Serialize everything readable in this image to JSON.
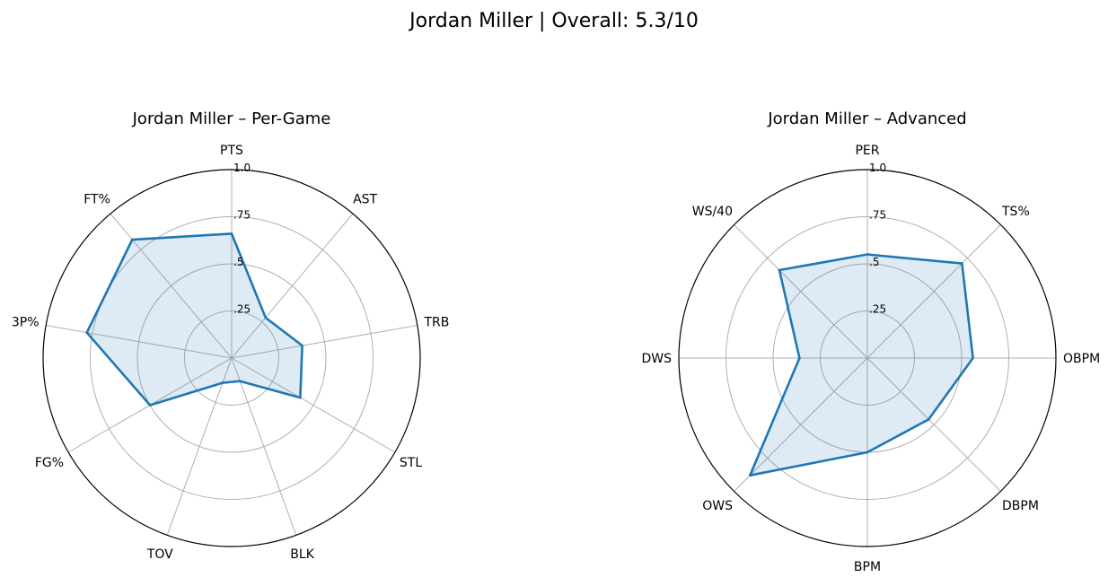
{
  "figure": {
    "suptitle": "Jordan Miller | Overall: 5.3/10"
  },
  "colors": {
    "line": "#1f77b4",
    "fill": "#1f77b4",
    "grid": "#b0b0b0",
    "frame": "#000000"
  },
  "chart_data": [
    {
      "type": "radar",
      "title": "Jordan Miller – Per-Game",
      "categories": [
        "PTS",
        "AST",
        "TRB",
        "STL",
        "BLK",
        "TOV",
        "FG%",
        "3P%",
        "FT%"
      ],
      "values": [
        0.66,
        0.28,
        0.38,
        0.42,
        0.13,
        0.14,
        0.5,
        0.78,
        0.82
      ],
      "rlim": [
        0,
        1.0
      ],
      "rticks": [
        0.25,
        0.5,
        0.75,
        1.0
      ],
      "rtick_labels": [
        ".25",
        ".5",
        ".75",
        "1.0"
      ],
      "grid": true
    },
    {
      "type": "radar",
      "title": "Jordan Miller – Advanced",
      "categories": [
        "PER",
        "TS%",
        "OBPM",
        "DBPM",
        "BPM",
        "OWS",
        "DWS",
        "WS/40"
      ],
      "values": [
        0.55,
        0.71,
        0.56,
        0.46,
        0.5,
        0.88,
        0.36,
        0.66
      ],
      "rlim": [
        0,
        1.0
      ],
      "rticks": [
        0.25,
        0.5,
        0.75,
        1.0
      ],
      "rtick_labels": [
        ".25",
        ".5",
        ".75",
        "1.0"
      ],
      "grid": true
    }
  ]
}
